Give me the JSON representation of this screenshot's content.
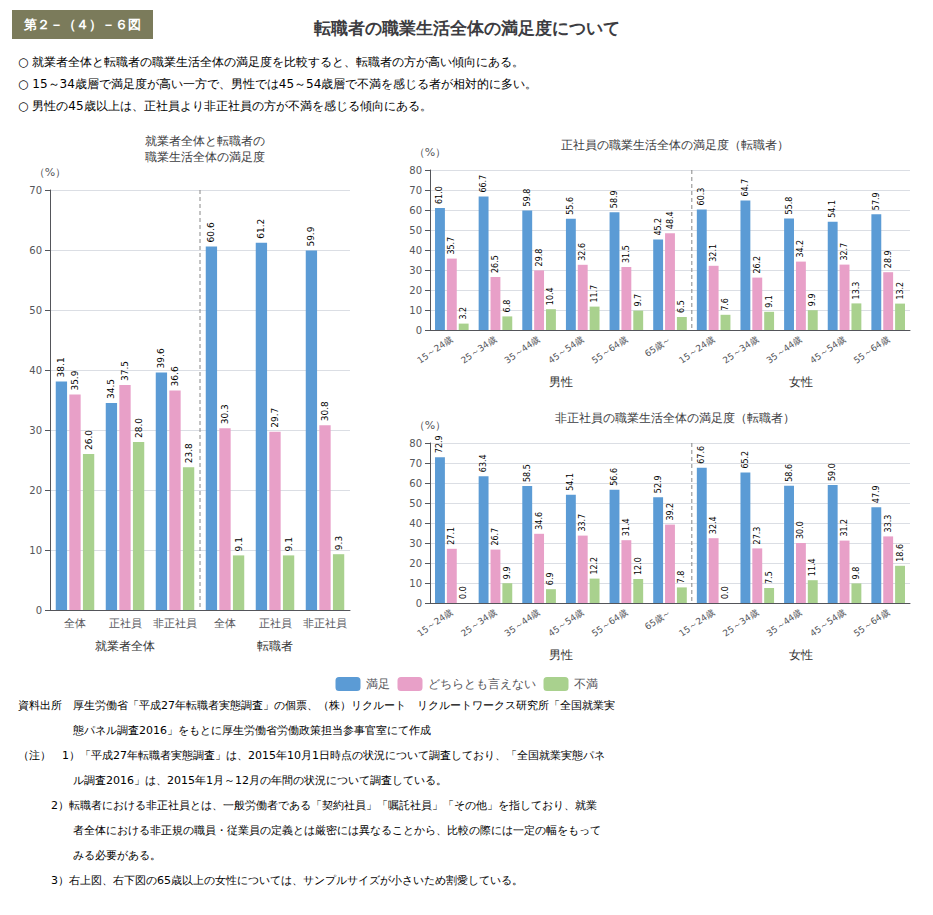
{
  "title": "転職者の職業生活全体の満足度について",
  "subtitle": "第２－（４）－６図",
  "annotations": [
    [
      "○ 就業者全体と転職者の職業生活全体の満足度を比較すると、転職者の方が高い傾向にある。",
      "○ 15～34歳層で満足度が高い一方で、男性では45～54歳層で不満を感じる者が相対的に多い。",
      "○ 男性の45歳以上は、正社員より非正社員の方が不満を感じる傾向にある。"
    ],
    [
      "資料出所　厚生労働省「平成27年転職者実態調査」の個票、（株）リクルート　リクルートワークス研究所「全国就業実",
      "　　　　　態パネル調査2016」をもとに厚生労働省労働政策担当参事官室にて作成",
      "（注）　1）「平成27年転職者実態調査」は、2015年10月1日時点の状況について調査しており、「全国就業実態パネ",
      "　　　　　ル調査2016」は、2015年1月～12月の年間の状況について調査している。",
      "　　　2）転職者における非正社員とは、一般労働者である「契約社員」「嘱託社員」「その他」を指しており、就業",
      "　　　　　者全体における非正規の職員・従業員の定義とは厳密には異なることから、比較の際には一定の幅をもって",
      "　　　　　みる必要がある。",
      "　　　3）右上図、右下図の65歳以上の女性については、サンプルサイズが小さいため割愛している。"
    ]
  ],
  "chart_data": [
    {
      "type": "bar",
      "title": "就業者全体と転職者の\n職業生活全体の満足度",
      "y_label": "（%）",
      "categories": [
        "全体",
        "正社員",
        "非正社員",
        "全体",
        "正社員",
        "非正社員"
      ],
      "groups": [
        {
          "label": "就業者全体",
          "categories": [
            "全体",
            "正社員",
            "非正社員"
          ]
        },
        {
          "label": "転職者",
          "categories": [
            "全体",
            "正社員",
            "非正社員"
          ]
        }
      ],
      "series": [
        {
          "name": "満足",
          "color": "#5B9BD5",
          "values": [
            38.1,
            34.5,
            39.6,
            60.6,
            61.2,
            59.9
          ],
          "value_labels": [
            "38.1",
            "34.5",
            "39.6",
            "60.6",
            "61.2",
            "59.9"
          ]
        },
        {
          "name": "どちらとも言えない",
          "color": "#E8A0C8",
          "values": [
            35.9,
            37.5,
            36.6,
            30.3,
            29.7,
            30.8
          ],
          "value_labels": [
            "35.9",
            "37.5",
            "36.6",
            "30.3",
            "29.7",
            "30.8"
          ]
        },
        {
          "name": "不満",
          "color": "#A9D18E",
          "values": [
            26.0,
            28.0,
            23.8,
            9.1,
            9.1,
            9.3
          ],
          "value_labels": [
            "26.0",
            "28.0",
            "23.8",
            "9.1",
            "9.1",
            "9.3"
          ]
        }
      ],
      "ylim": [
        0,
        70
      ],
      "yticks": [
        0,
        10,
        20,
        30,
        40,
        50,
        60,
        70
      ],
      "grid": true,
      "data_labels": true,
      "legend": "bottom"
    },
    {
      "type": "bar",
      "title": "正社員の職業生活全体の満足度（転職者）",
      "y_label": "（%）",
      "categories": [
        "15～24歳",
        "25～34歳",
        "35～44歳",
        "45～54歳",
        "55～64歳",
        "65歳～",
        "15～24歳",
        "25～34歳",
        "35～44歳",
        "45～54歳",
        "55～64歳"
      ],
      "groups": [
        {
          "label": "男性",
          "categories": [
            "15～24歳",
            "25～34歳",
            "35～44歳",
            "45～54歳",
            "55～64歳",
            "65歳～"
          ]
        },
        {
          "label": "女性",
          "categories": [
            "15～24歳",
            "25～34歳",
            "35～44歳",
            "45～54歳",
            "55～64歳"
          ]
        }
      ],
      "series": [
        {
          "name": "満足",
          "color": "#5B9BD5",
          "values": [
            61.0,
            66.7,
            59.8,
            55.6,
            58.9,
            45.2,
            60.3,
            64.7,
            55.8,
            54.1,
            57.9
          ],
          "value_labels": [
            "61.0",
            "66.7",
            "59.8",
            "55.6",
            "58.9",
            "45.2",
            "60.3",
            "64.7",
            "55.8",
            "54.1",
            "57.9"
          ]
        },
        {
          "name": "どちらとも言えない",
          "color": "#E8A0C8",
          "values": [
            35.7,
            26.5,
            29.8,
            32.6,
            31.5,
            48.4,
            32.1,
            26.2,
            34.2,
            32.7,
            28.9
          ],
          "value_labels": [
            "35.7",
            "26.5",
            "29.8",
            "32.6",
            "31.5",
            "48.4",
            "32.1",
            "26.2",
            "34.2",
            "32.7",
            "28.9"
          ]
        },
        {
          "name": "不満",
          "color": "#A9D18E",
          "values": [
            3.2,
            6.8,
            10.4,
            11.7,
            9.7,
            6.5,
            7.6,
            9.1,
            9.9,
            13.3,
            13.2
          ],
          "value_labels": [
            "3.2",
            "6.8",
            "10.4",
            "11.7",
            "9.7",
            "6.5",
            "7.6",
            "9.1",
            "9.9",
            "13.3",
            "13.2"
          ]
        }
      ],
      "ylim": [
        0,
        80
      ],
      "yticks": [
        0,
        10,
        20,
        30,
        40,
        50,
        60,
        70,
        80
      ],
      "grid": true,
      "data_labels": true,
      "legend": "bottom"
    },
    {
      "type": "bar",
      "title": "非正社員の職業生活全体の満足度（転職者）",
      "y_label": "（%）",
      "categories": [
        "15～24歳",
        "25～34歳",
        "35～44歳",
        "45～54歳",
        "55～64歳",
        "65歳～",
        "15～24歳",
        "25～34歳",
        "35～44歳",
        "45～54歳",
        "55～64歳"
      ],
      "groups": [
        {
          "label": "男性",
          "categories": [
            "15～24歳",
            "25～34歳",
            "35～44歳",
            "45～54歳",
            "55～64歳",
            "65歳～"
          ]
        },
        {
          "label": "女性",
          "categories": [
            "15～24歳",
            "25～34歳",
            "35～44歳",
            "45～54歳",
            "55～64歳"
          ]
        }
      ],
      "series": [
        {
          "name": "満足",
          "color": "#5B9BD5",
          "values": [
            72.9,
            63.4,
            58.5,
            54.1,
            56.6,
            52.9,
            67.6,
            65.2,
            58.6,
            59.0,
            47.9
          ],
          "value_labels": [
            "72.9",
            "63.4",
            "58.5",
            "54.1",
            "56.6",
            "52.9",
            "67.6",
            "65.2",
            "58.6",
            "59.0",
            "47.9"
          ]
        },
        {
          "name": "どちらとも言えない",
          "color": "#E8A0C8",
          "values": [
            27.1,
            26.7,
            34.6,
            33.7,
            31.4,
            39.2,
            32.4,
            27.3,
            30.0,
            31.2,
            33.3
          ],
          "value_labels": [
            "27.1",
            "26.7",
            "34.6",
            "33.7",
            "31.4",
            "39.2",
            "32.4",
            "27.3",
            "30.0",
            "31.2",
            "33.3"
          ]
        },
        {
          "name": "不満",
          "color": "#A9D18E",
          "values": [
            0.0,
            9.9,
            6.9,
            12.2,
            12.0,
            7.8,
            0.0,
            7.5,
            11.4,
            9.8,
            18.6
          ],
          "value_labels": [
            "0.0",
            "9.9",
            "6.9",
            "12.2",
            "12.0",
            "7.8",
            "0.0",
            "7.5",
            "11.4",
            "9.8",
            "18.6"
          ]
        }
      ],
      "ylim": [
        0,
        80
      ],
      "yticks": [
        0,
        10,
        20,
        30,
        40,
        50,
        60,
        70,
        80
      ],
      "grid": true,
      "data_labels": true,
      "legend": "bottom"
    }
  ]
}
